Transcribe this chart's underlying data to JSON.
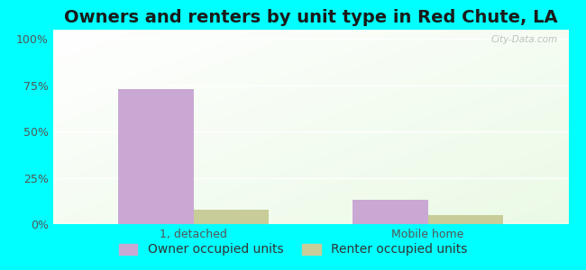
{
  "title": "Owners and renters by unit type in Red Chute, LA",
  "categories": [
    "1, detached",
    "Mobile home"
  ],
  "owner_values": [
    73,
    13
  ],
  "renter_values": [
    8,
    5
  ],
  "owner_color": "#c9a8d4",
  "renter_color": "#c8cc99",
  "yticks": [
    0,
    25,
    50,
    75,
    100
  ],
  "yticklabels": [
    "0%",
    "25%",
    "50%",
    "75%",
    "100%"
  ],
  "ylim": [
    0,
    105
  ],
  "outer_bg": "#00FFFF",
  "title_fontsize": 14,
  "legend_fontsize": 10,
  "tick_fontsize": 9,
  "bar_width": 0.32,
  "watermark": "City-Data.com"
}
